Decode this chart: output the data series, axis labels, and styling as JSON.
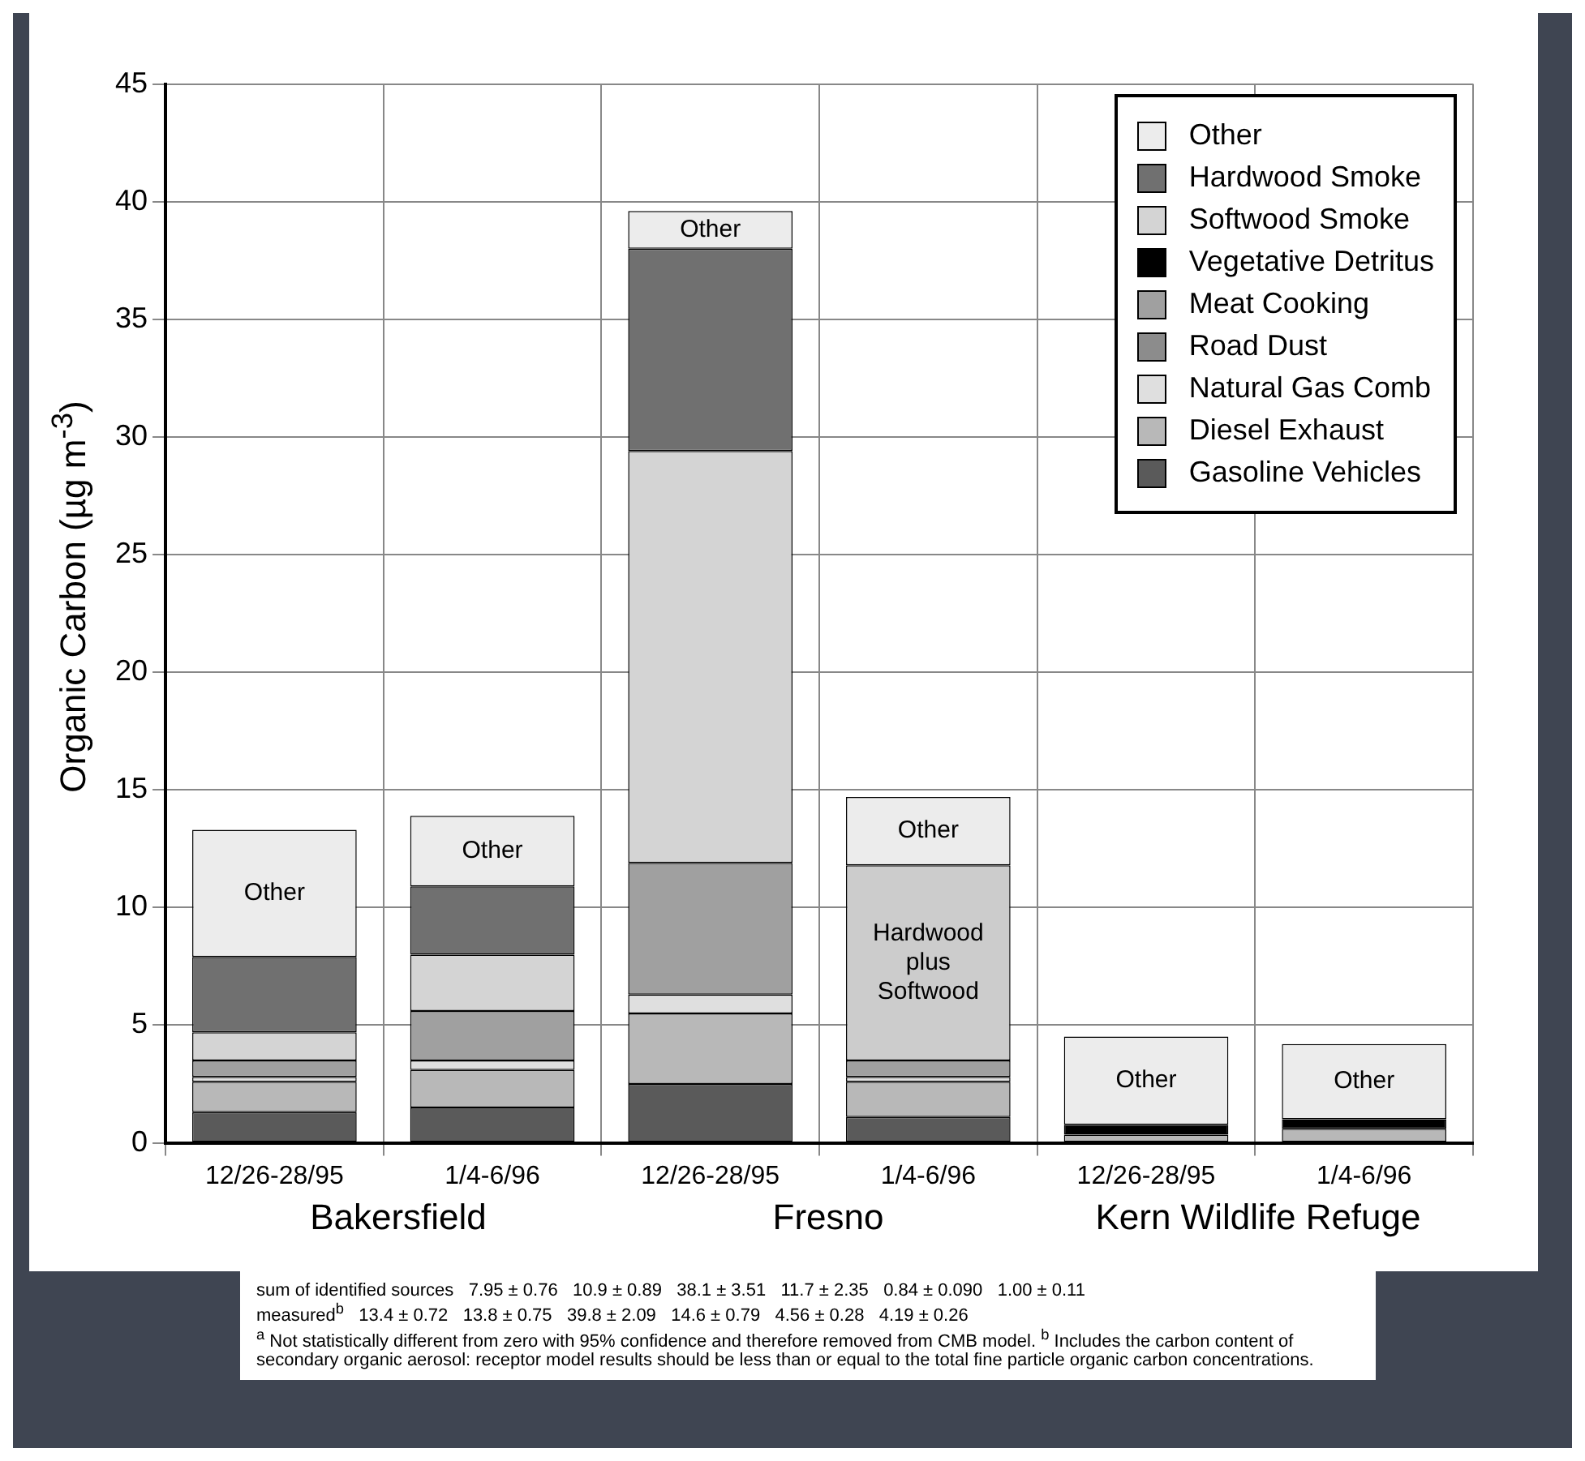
{
  "chart_data": {
    "type": "bar",
    "stacked": true,
    "ylabel": "Organic Carbon (µg m$^{-3}$)",
    "categories": [
      "12/26-28/95",
      "1/4-6/96",
      "12/26-28/95",
      "1/4-6/96",
      "12/26-28/95",
      "1/4-6/96"
    ],
    "series": [
      {
        "name": "Gasoline Vehicles",
        "color": "#5a5a5a",
        "values": [
          1.3,
          1.5,
          2.5,
          1.1,
          null,
          null
        ]
      },
      {
        "name": "Diesel Exhaust",
        "color": "#b8b8b8",
        "values": [
          1.3,
          1.6,
          3.0,
          1.5,
          0.35,
          0.6
        ]
      },
      {
        "name": "Natural Gas Comb",
        "color": "#dfdfdf",
        "values": [
          0.2,
          0.4,
          0.8,
          0.2,
          null,
          null
        ]
      },
      {
        "name": "Road Dust",
        "color": "#8c8c8c",
        "values": [
          null,
          null,
          null,
          null,
          null,
          null
        ]
      },
      {
        "name": "Meat Cooking",
        "color": "#a0a0a0",
        "values": [
          0.7,
          2.1,
          5.6,
          0.7,
          null,
          null
        ]
      },
      {
        "name": "Vegetative Detritus",
        "color": "#000000",
        "values": [
          null,
          null,
          null,
          null,
          0.42,
          0.4
        ]
      },
      {
        "name": "Softwood Smoke",
        "color": "#d4d4d4",
        "values": [
          1.2,
          2.4,
          17.5,
          null,
          null,
          null
        ]
      },
      {
        "name": "Hardwood plus Softwood",
        "color": "#cccccc",
        "values": [
          null,
          null,
          null,
          8.3,
          null,
          null
        ]
      },
      {
        "name": "Hardwood Smoke",
        "color": "#707070",
        "values": [
          3.2,
          2.9,
          8.6,
          null,
          null,
          null
        ]
      },
      {
        "name": "Other",
        "color": "#ececec",
        "values": [
          5.4,
          3.0,
          1.6,
          2.9,
          3.75,
          3.2
        ]
      }
    ],
    "ylim": [
      0,
      45
    ],
    "yticks": [
      0,
      5,
      10,
      15,
      20,
      25,
      30,
      35,
      40,
      45
    ],
    "grid": true,
    "legend": "top right",
    "annotations": [
      "Bakersfield",
      "Fresno",
      "Kern Wildlife Refuge",
      "sum of identified sources   7.95 ± 0.76   10.9 ± 0.89   38.1 ± 3.51   11.7 ± 2.35   0.84 ± 0.090   1.00 ± 0.11",
      "measured$^{b}$   13.4 ± 0.72   13.8 ± 0.75   39.8 ± 2.09   14.6 ± 0.79   4.56 ± 0.28   4.19 ± 0.26",
      "$^{a}$ Not statistically different from zero with 95% confidence and therefore removed from CMB model. $^{b}$ Includes the carbon content of secondary organic aerosol: receptor model results should be less than or equal to the total fine particle organic carbon concentrations."
    ]
  }
}
